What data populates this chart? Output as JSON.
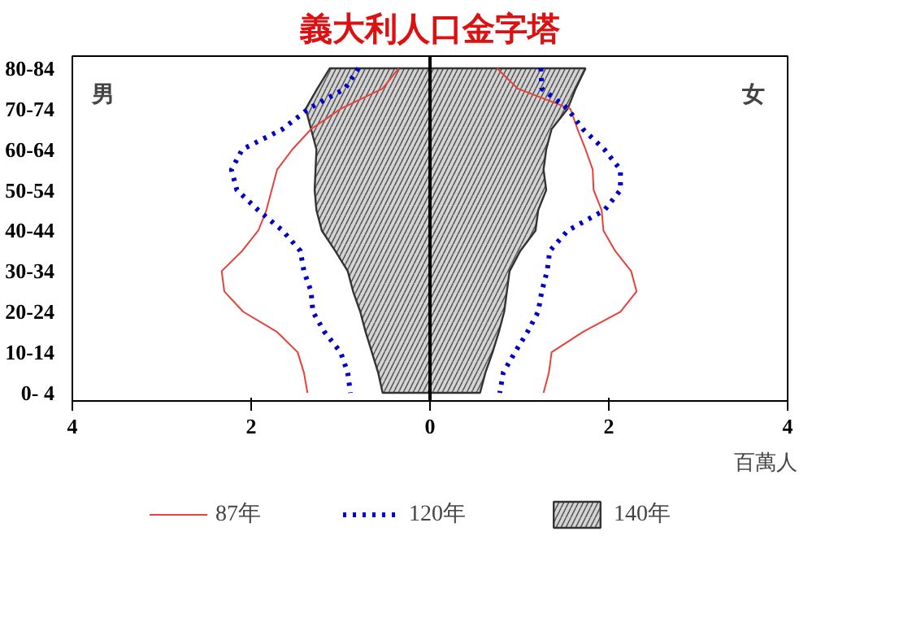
{
  "chart_data": {
    "type": "line",
    "orientation": "horizontal",
    "title": "義大利人口金字塔",
    "xlabel": "百萬人",
    "categories": [
      "80-84",
      null,
      "70-74",
      null,
      "60-64",
      null,
      "50-54",
      null,
      "40-44",
      null,
      "30-34",
      null,
      "20-24",
      null,
      "10-14",
      null,
      "0- 4"
    ],
    "xlim": [
      -4,
      4
    ],
    "xticks": [
      {
        "value": -4,
        "label": "4"
      },
      {
        "value": -2,
        "label": "2"
      },
      0,
      2,
      4
    ],
    "series": [
      {
        "name": "87年",
        "line_style": "solid",
        "color": "#e8403a",
        "values": [
          -0.35,
          -0.53,
          -1.0,
          -1.33,
          -1.54,
          -1.71,
          -1.77,
          -1.83,
          -1.92,
          -2.1,
          -2.33,
          -2.3,
          -2.09,
          -1.71,
          -1.48,
          -1.41,
          -1.37
        ]
      },
      {
        "line_style": "solid",
        "color": "#e8403a",
        "values": [
          0.75,
          0.98,
          1.57,
          1.65,
          1.74,
          1.82,
          1.83,
          1.92,
          1.94,
          2.07,
          2.25,
          2.31,
          2.13,
          1.71,
          1.36,
          1.33,
          1.27
        ]
      },
      {
        "name": "120年",
        "line_style": "dotted",
        "color": "#0000cc",
        "values": [
          -0.8,
          -0.95,
          -1.36,
          -1.65,
          -2.1,
          -2.22,
          -2.16,
          -1.92,
          -1.65,
          -1.45,
          -1.41,
          -1.33,
          -1.31,
          -1.18,
          -1.0,
          -0.92,
          -0.89
        ]
      },
      {
        "line_style": "dotted",
        "color": "#0000cc",
        "values": [
          1.24,
          1.25,
          1.54,
          1.71,
          1.95,
          2.13,
          2.13,
          1.95,
          1.54,
          1.34,
          1.31,
          1.25,
          1.21,
          1.09,
          0.95,
          0.82,
          0.78
        ]
      },
      {
        "name": "140年",
        "type": "area",
        "color": "#555555",
        "values": [
          -1.12,
          -1.26,
          -1.39,
          -1.33,
          -1.27,
          -1.28,
          -1.29,
          -1.27,
          -1.21,
          -1.06,
          -0.92,
          -0.86,
          -0.78,
          -0.72,
          -0.65,
          -0.58,
          -0.53
        ]
      },
      {
        "type": "area",
        "color": "#555555",
        "values": [
          1.74,
          1.63,
          1.54,
          1.36,
          1.3,
          1.27,
          1.3,
          1.21,
          1.18,
          1.01,
          0.89,
          0.86,
          0.83,
          0.77,
          0.7,
          0.62,
          0.56
        ]
      }
    ],
    "ref_lines": [
      {
        "axis": "x",
        "value": 0,
        "color": "#000000"
      }
    ],
    "annotations": [
      "男",
      "女"
    ],
    "legend": "bottom",
    "grid": false,
    "marker": "none"
  }
}
